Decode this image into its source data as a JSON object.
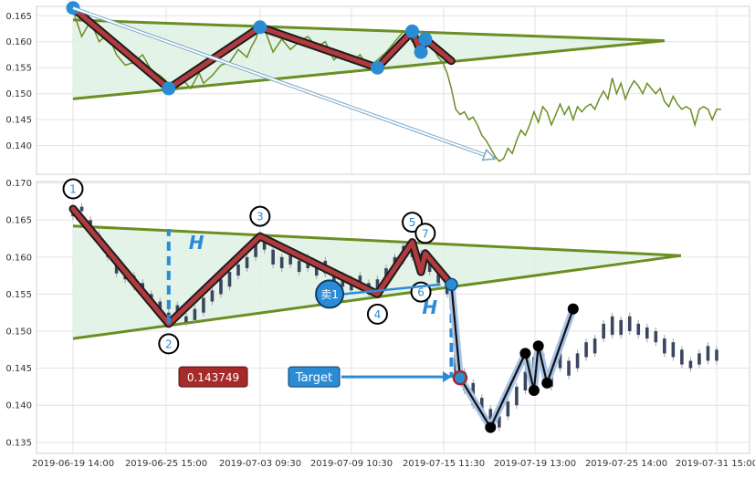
{
  "colors": {
    "wave": "#b03a3e",
    "wave_edge": "#1c1c1c",
    "trend": "#6b8e23",
    "triangle_fill": "#dff1e4",
    "pivot": "#2b8cd6",
    "price_line": "#6b8e23",
    "candle": "#3a4660",
    "projection": "#a9c4e6",
    "target_badge": "#2b8cd6",
    "price_badge": "#a52a2a"
  },
  "labels": {
    "height_marker": "H",
    "sell_marker": "卖1",
    "target_text": "Target",
    "target_price": "0.143749"
  },
  "chart_data": [
    {
      "type": "line",
      "ylim": [
        0.1345,
        0.1668
      ],
      "yticks": [
        "0.165",
        "0.160",
        "0.155",
        "0.150",
        "0.145",
        "0.140"
      ],
      "price_series": [
        [
          0,
          0.166
        ],
        [
          2,
          0.161
        ],
        [
          4,
          0.164
        ],
        [
          6,
          0.16
        ],
        [
          8,
          0.1615
        ],
        [
          10,
          0.1575
        ],
        [
          12,
          0.1555
        ],
        [
          14,
          0.156
        ],
        [
          16,
          0.1575
        ],
        [
          18,
          0.1545
        ],
        [
          20,
          0.1535
        ],
        [
          22,
          0.152
        ],
        [
          24,
          0.1515
        ],
        [
          25,
          0.1525
        ],
        [
          26,
          0.152
        ],
        [
          27,
          0.151
        ],
        [
          28,
          0.1525
        ],
        [
          29,
          0.154
        ],
        [
          30,
          0.152
        ],
        [
          32,
          0.1535
        ],
        [
          34,
          0.1555
        ],
        [
          36,
          0.156
        ],
        [
          38,
          0.1585
        ],
        [
          40,
          0.157
        ],
        [
          41,
          0.159
        ],
        [
          42,
          0.1605
        ],
        [
          43,
          0.163
        ],
        [
          44,
          0.1625
        ],
        [
          46,
          0.158
        ],
        [
          48,
          0.1605
        ],
        [
          50,
          0.1585
        ],
        [
          52,
          0.16
        ],
        [
          54,
          0.161
        ],
        [
          56,
          0.159
        ],
        [
          58,
          0.16
        ],
        [
          60,
          0.1565
        ],
        [
          62,
          0.158
        ],
        [
          64,
          0.156
        ],
        [
          66,
          0.1575
        ],
        [
          68,
          0.155
        ],
        [
          70,
          0.1565
        ],
        [
          72,
          0.158
        ],
        [
          74,
          0.16
        ],
        [
          76,
          0.162
        ],
        [
          77,
          0.1615
        ],
        [
          78,
          0.16
        ],
        [
          79,
          0.161
        ],
        [
          80,
          0.1575
        ],
        [
          81,
          0.16
        ],
        [
          82,
          0.161
        ],
        [
          83,
          0.1585
        ],
        [
          84,
          0.157
        ],
        [
          85,
          0.156
        ],
        [
          86,
          0.154
        ],
        [
          87,
          0.151
        ],
        [
          88,
          0.147
        ],
        [
          89,
          0.146
        ],
        [
          90,
          0.1465
        ],
        [
          91,
          0.145
        ],
        [
          92,
          0.1455
        ],
        [
          93,
          0.144
        ],
        [
          94,
          0.142
        ],
        [
          95,
          0.141
        ],
        [
          96,
          0.1395
        ],
        [
          97,
          0.138
        ],
        [
          98,
          0.137
        ],
        [
          99,
          0.1375
        ],
        [
          100,
          0.1395
        ],
        [
          101,
          0.1385
        ],
        [
          102,
          0.141
        ],
        [
          103,
          0.143
        ],
        [
          104,
          0.142
        ],
        [
          105,
          0.144
        ],
        [
          106,
          0.1465
        ],
        [
          107,
          0.1445
        ],
        [
          108,
          0.1475
        ],
        [
          109,
          0.1465
        ],
        [
          110,
          0.144
        ],
        [
          111,
          0.146
        ],
        [
          112,
          0.148
        ],
        [
          113,
          0.146
        ],
        [
          114,
          0.1475
        ],
        [
          115,
          0.145
        ],
        [
          116,
          0.1475
        ],
        [
          117,
          0.1465
        ],
        [
          118,
          0.1475
        ],
        [
          119,
          0.148
        ],
        [
          120,
          0.147
        ],
        [
          121,
          0.149
        ],
        [
          122,
          0.1505
        ],
        [
          123,
          0.149
        ],
        [
          124,
          0.153
        ],
        [
          125,
          0.15
        ],
        [
          126,
          0.152
        ],
        [
          127,
          0.149
        ],
        [
          128,
          0.151
        ],
        [
          129,
          0.1525
        ],
        [
          130,
          0.1515
        ],
        [
          131,
          0.15
        ],
        [
          132,
          0.152
        ],
        [
          133,
          0.151
        ],
        [
          134,
          0.15
        ],
        [
          135,
          0.151
        ],
        [
          136,
          0.1485
        ],
        [
          137,
          0.1475
        ],
        [
          138,
          0.1495
        ],
        [
          139,
          0.148
        ],
        [
          140,
          0.147
        ],
        [
          141,
          0.1475
        ],
        [
          142,
          0.147
        ],
        [
          143,
          0.144
        ],
        [
          144,
          0.147
        ],
        [
          145,
          0.1475
        ],
        [
          146,
          0.147
        ],
        [
          147,
          0.145
        ],
        [
          148,
          0.147
        ],
        [
          149,
          0.147
        ]
      ],
      "trend_upper": [
        [
          0,
          0.1642
        ],
        [
          136,
          0.1602
        ]
      ],
      "trend_lower": [
        [
          0,
          0.149
        ],
        [
          136,
          0.1602
        ]
      ],
      "wave": [
        [
          0,
          0.1665
        ],
        [
          22,
          0.151
        ],
        [
          43,
          0.1628
        ],
        [
          70,
          0.155
        ],
        [
          78,
          0.162
        ],
        [
          80,
          0.158
        ],
        [
          81,
          0.1605
        ],
        [
          87,
          0.1563
        ]
      ],
      "pivots": [
        [
          0,
          0.1665
        ],
        [
          22,
          0.151
        ],
        [
          43,
          0.1628
        ],
        [
          70,
          0.155
        ],
        [
          78,
          0.162
        ],
        [
          80,
          0.158
        ],
        [
          81,
          0.1605
        ]
      ],
      "projection_arrow": [
        [
          0,
          0.1665
        ],
        [
          97,
          0.1375
        ]
      ]
    },
    {
      "type": "candlestick",
      "ylim": [
        0.1335,
        0.1702
      ],
      "yticks": [
        "0.170",
        "0.165",
        "0.160",
        "0.155",
        "0.150",
        "0.145",
        "0.140",
        "0.135"
      ],
      "xticks": [
        "2019-06-19 14:00",
        "2019-06-25 15:00",
        "2019-07-03 09:30",
        "2019-07-09 10:30",
        "2019-07-15 11:30",
        "2019-07-19 13:00",
        "2019-07-25 14:00",
        "2019-07-31 15:00"
      ],
      "candles": [
        [
          0,
          0.166,
          0.1655
        ],
        [
          2,
          0.1668,
          0.1662
        ],
        [
          4,
          0.165,
          0.164
        ],
        [
          6,
          0.163,
          0.162
        ],
        [
          8,
          0.161,
          0.16
        ],
        [
          10,
          0.1595,
          0.1578
        ],
        [
          12,
          0.158,
          0.157
        ],
        [
          14,
          0.1575,
          0.156
        ],
        [
          16,
          0.1565,
          0.1552
        ],
        [
          18,
          0.155,
          0.154
        ],
        [
          20,
          0.154,
          0.153
        ],
        [
          22,
          0.1525,
          0.1515
        ],
        [
          24,
          0.1535,
          0.152
        ],
        [
          26,
          0.152,
          0.1512
        ],
        [
          28,
          0.153,
          0.1515
        ],
        [
          30,
          0.1545,
          0.1525
        ],
        [
          32,
          0.1555,
          0.154
        ],
        [
          34,
          0.157,
          0.155
        ],
        [
          36,
          0.158,
          0.156
        ],
        [
          38,
          0.159,
          0.1575
        ],
        [
          40,
          0.16,
          0.1585
        ],
        [
          42,
          0.162,
          0.16
        ],
        [
          44,
          0.1625,
          0.161
        ],
        [
          46,
          0.161,
          0.159
        ],
        [
          48,
          0.16,
          0.1585
        ],
        [
          50,
          0.1605,
          0.159
        ],
        [
          52,
          0.1595,
          0.158
        ],
        [
          54,
          0.16,
          0.1585
        ],
        [
          56,
          0.159,
          0.1575
        ],
        [
          58,
          0.1595,
          0.1578
        ],
        [
          60,
          0.158,
          0.1565
        ],
        [
          62,
          0.1575,
          0.156
        ],
        [
          64,
          0.157,
          0.1555
        ],
        [
          66,
          0.1575,
          0.156
        ],
        [
          68,
          0.1565,
          0.155
        ],
        [
          70,
          0.157,
          0.1552
        ],
        [
          72,
          0.1585,
          0.1565
        ],
        [
          74,
          0.16,
          0.158
        ],
        [
          76,
          0.1615,
          0.1595
        ],
        [
          78,
          0.162,
          0.16
        ],
        [
          80,
          0.1605,
          0.1585
        ],
        [
          82,
          0.16,
          0.158
        ],
        [
          84,
          0.1585,
          0.1565
        ],
        [
          86,
          0.157,
          0.155
        ],
        [
          88,
          0.148,
          0.144
        ],
        [
          90,
          0.1445,
          0.142
        ],
        [
          92,
          0.143,
          0.14
        ],
        [
          94,
          0.141,
          0.1385
        ],
        [
          96,
          0.1395,
          0.1375
        ],
        [
          98,
          0.1385,
          0.137
        ],
        [
          100,
          0.1405,
          0.1385
        ],
        [
          102,
          0.1425,
          0.14
        ],
        [
          104,
          0.1445,
          0.142
        ],
        [
          106,
          0.1465,
          0.144
        ],
        [
          108,
          0.147,
          0.1445
        ],
        [
          110,
          0.1445,
          0.1425
        ],
        [
          112,
          0.147,
          0.145
        ],
        [
          114,
          0.146,
          0.144
        ],
        [
          116,
          0.147,
          0.145
        ],
        [
          118,
          0.1485,
          0.1465
        ],
        [
          120,
          0.149,
          0.147
        ],
        [
          122,
          0.151,
          0.149
        ],
        [
          124,
          0.152,
          0.1495
        ],
        [
          126,
          0.1515,
          0.1495
        ],
        [
          128,
          0.152,
          0.15
        ],
        [
          130,
          0.151,
          0.1495
        ],
        [
          132,
          0.1505,
          0.149
        ],
        [
          134,
          0.15,
          0.1485
        ],
        [
          136,
          0.149,
          0.147
        ],
        [
          138,
          0.1485,
          0.1465
        ],
        [
          140,
          0.1475,
          0.1455
        ],
        [
          142,
          0.146,
          0.145
        ],
        [
          144,
          0.147,
          0.1455
        ],
        [
          146,
          0.148,
          0.146
        ],
        [
          148,
          0.1475,
          0.146
        ]
      ],
      "trend_upper": [
        [
          0,
          0.1642
        ],
        [
          136,
          0.1602
        ]
      ],
      "trend_lower": [
        [
          0,
          0.149
        ],
        [
          136,
          0.1602
        ]
      ],
      "wave": [
        [
          0,
          0.1665
        ],
        [
          22,
          0.151
        ],
        [
          43,
          0.1628
        ],
        [
          70,
          0.155
        ],
        [
          78,
          0.162
        ],
        [
          80,
          0.158
        ],
        [
          81,
          0.1605
        ],
        [
          87,
          0.1563
        ]
      ],
      "wave_labels": [
        {
          "label": "1",
          "x": 0,
          "y": 0.1665,
          "pos": "above"
        },
        {
          "label": "2",
          "x": 22,
          "y": 0.151,
          "pos": "below"
        },
        {
          "label": "3",
          "x": 43,
          "y": 0.1628,
          "pos": "above"
        },
        {
          "label": "4",
          "x": 70,
          "y": 0.155,
          "pos": "below"
        },
        {
          "label": "5",
          "x": 78,
          "y": 0.162,
          "pos": "above"
        },
        {
          "label": "6",
          "x": 80,
          "y": 0.158,
          "pos": "below"
        },
        {
          "label": "7",
          "x": 81,
          "y": 0.1605,
          "pos": "above"
        }
      ],
      "height_line": {
        "x": 22,
        "y_from": 0.151,
        "y_to": 0.1638
      },
      "breakout": {
        "x": 87,
        "y": 0.1563
      },
      "target_line": {
        "x": 87,
        "y_from": 0.1563,
        "y_to": 0.1437
      },
      "sell_signal": {
        "x": 59,
        "y": 0.155
      },
      "target_point": {
        "x": 89,
        "y": 0.1437
      },
      "outcome_path": [
        [
          87,
          0.1563
        ],
        [
          89,
          0.1437
        ],
        [
          96,
          0.137
        ],
        [
          104,
          0.147
        ],
        [
          106,
          0.142
        ],
        [
          107,
          0.148
        ],
        [
          109,
          0.143
        ],
        [
          115,
          0.153
        ]
      ],
      "outcome_dots": [
        [
          96,
          0.137
        ],
        [
          104,
          0.147
        ],
        [
          106,
          0.142
        ],
        [
          107,
          0.148
        ],
        [
          109,
          0.143
        ],
        [
          115,
          0.153
        ]
      ]
    }
  ]
}
